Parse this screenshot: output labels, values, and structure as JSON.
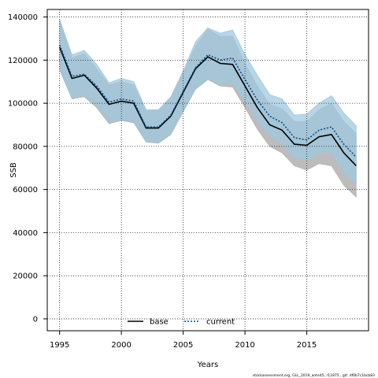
{
  "chart_data": {
    "type": "line",
    "title": "",
    "xlabel": "Years",
    "ylabel": "SSB",
    "xlim": [
      1994,
      2020
    ],
    "ylim": [
      -5500,
      143500
    ],
    "x_ticks": [
      1995,
      2000,
      2005,
      2010,
      2015
    ],
    "y_ticks": [
      0,
      20000,
      40000,
      60000,
      80000,
      100000,
      120000,
      140000
    ],
    "grid": true,
    "legend_placement": "bottom-center",
    "x": [
      1995,
      1996,
      1997,
      1998,
      1999,
      2000,
      2001,
      2002,
      2003,
      2004,
      2005,
      2006,
      2007,
      2008,
      2009,
      2010,
      2011,
      2012,
      2013,
      2014,
      2015,
      2016,
      2017,
      2018,
      2019
    ],
    "series": [
      {
        "name": "base",
        "color": "#000000",
        "line_style": "solid",
        "band_color": "#b5b5b5",
        "values": [
          126000,
          111500,
          113000,
          107000,
          99500,
          101000,
          100000,
          88500,
          88500,
          94000,
          105000,
          116000,
          121500,
          118500,
          118000,
          108000,
          98000,
          90000,
          87500,
          81000,
          80500,
          84500,
          85500,
          77000,
          71000
        ],
        "lower": [
          115500,
          102000,
          103000,
          98000,
          90500,
          92000,
          91000,
          82000,
          81500,
          85500,
          96000,
          106500,
          111000,
          108000,
          107500,
          98000,
          88000,
          80000,
          77000,
          71000,
          69000,
          72000,
          71000,
          62000,
          56500
        ],
        "upper": [
          138000,
          121000,
          123000,
          116000,
          108500,
          110000,
          108500,
          96500,
          96500,
          102500,
          114000,
          126500,
          134500,
          131000,
          131000,
          118500,
          108000,
          99500,
          97500,
          91500,
          91500,
          97000,
          100000,
          91500,
          86000
        ]
      },
      {
        "name": "current",
        "color": "#0a4d8c",
        "line_style": "dotted",
        "band_color": "#9fc8df",
        "values": [
          127000,
          112500,
          113500,
          108000,
          100500,
          102000,
          101000,
          89000,
          89000,
          94500,
          105500,
          116500,
          122500,
          120000,
          121000,
          111000,
          101500,
          94000,
          91000,
          84000,
          83000,
          87500,
          89000,
          81000,
          75000
        ],
        "lower": [
          116000,
          102500,
          103500,
          99000,
          91500,
          92500,
          91500,
          82500,
          82000,
          86000,
          96500,
          107000,
          111500,
          109000,
          109500,
          101000,
          92000,
          85000,
          81500,
          75000,
          73500,
          77000,
          77500,
          68000,
          63000
        ],
        "upper": [
          139000,
          122500,
          124500,
          118000,
          109500,
          111500,
          110000,
          97000,
          97000,
          103000,
          115000,
          128500,
          135000,
          132500,
          134000,
          122500,
          113000,
          104000,
          102000,
          94500,
          95000,
          100000,
          103500,
          95500,
          89500
        ]
      }
    ]
  },
  "footnote": "stockassessment.org, GLL_2019_anteit5, r11875 , git: df0b7c1bcb83"
}
